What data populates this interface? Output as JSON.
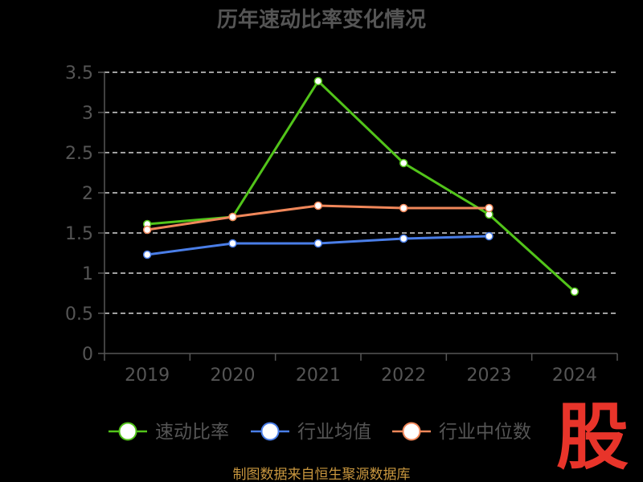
{
  "chart_data": {
    "type": "line",
    "title": "历年速动比率变化情况",
    "categories": [
      "2019",
      "2020",
      "2021",
      "2022",
      "2023",
      "2024"
    ],
    "y_ticks": [
      "0",
      "0.5",
      "1",
      "1.5",
      "2",
      "2.5",
      "3",
      "3.5"
    ],
    "ylim": [
      0,
      3.5
    ],
    "grid": true,
    "legend_position": "bottom",
    "series": [
      {
        "name": "速动比率",
        "color": "#52c41a",
        "values": [
          1.61,
          1.7,
          3.39,
          2.37,
          1.73,
          0.77
        ]
      },
      {
        "name": "行业均值",
        "color": "#4a7ee8",
        "values": [
          1.23,
          1.37,
          1.37,
          1.43,
          1.46,
          null
        ]
      },
      {
        "name": "行业中位数",
        "color": "#f0875a",
        "values": [
          1.54,
          1.7,
          1.84,
          1.81,
          1.81,
          null
        ]
      }
    ]
  },
  "source": "制图数据来自恒生聚源数据库",
  "logo": "股",
  "colors": {
    "background": "#000000",
    "grid": "#ffffff",
    "axis": "#555555"
  }
}
